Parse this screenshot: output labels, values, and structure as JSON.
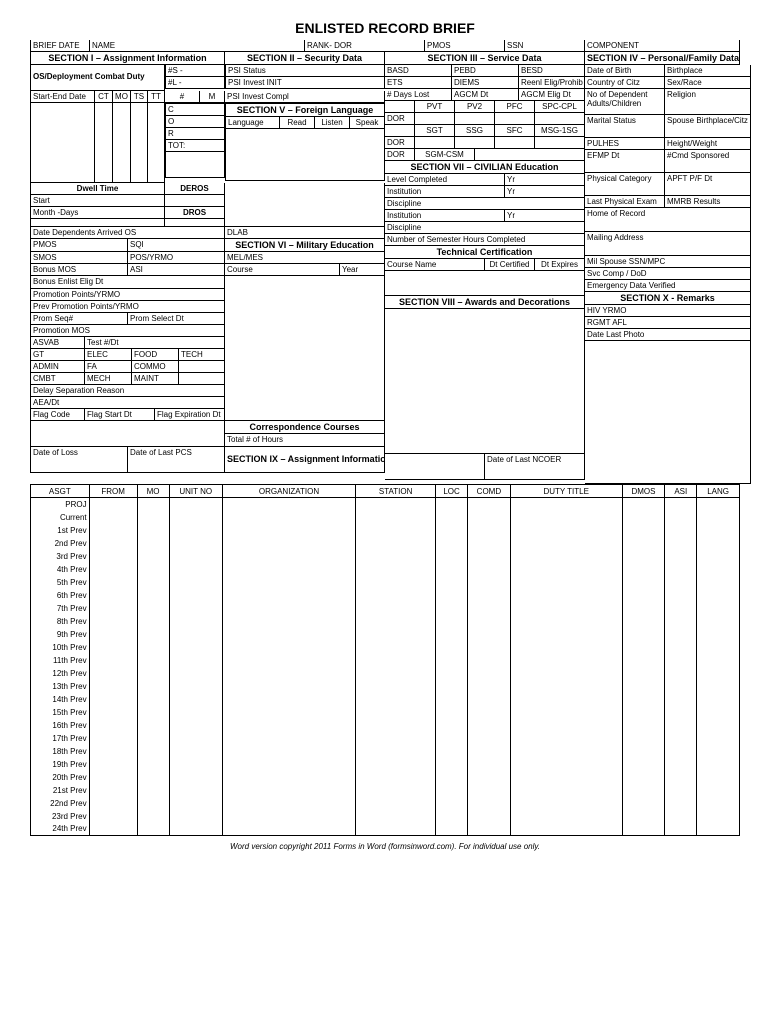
{
  "title": "ENLISTED RECORD BRIEF",
  "top": {
    "brief_date": "BRIEF DATE",
    "name": "NAME",
    "rank_dor": "RANK- DOR",
    "pmos": "PMOS",
    "ssn": "SSN",
    "component": "COMPONENT"
  },
  "sec": {
    "s1": "SECTION I – Assignment Information",
    "s2": "SECTION II – Security Data",
    "s3": "SECTION III – Service Data",
    "s4": "SECTION IV – Personal/Family Data",
    "s5": "SECTION V – Foreign Language",
    "s6": "SECTION VI – Military Education",
    "s7": "SECTION VII – CIVILIAN Education",
    "s8": "SECTION VIII – Awards and Decorations",
    "s9": "SECTION IX – Assignment Information",
    "s10": "SECTION X - Remarks",
    "tech_cert": "Technical Certification",
    "corr": "Correspondence Courses"
  },
  "s1": {
    "os_deploy": "OS/Deployment Combat Duty",
    "hash_s": "#S -",
    "hash_l": "#L -",
    "start_end": "Start-End Date",
    "ct": "CT",
    "mo": "MO",
    "ts": "TS",
    "tt": "TT",
    "hash": "#",
    "m": "M",
    "c": "C",
    "o": "O",
    "r": "R",
    "tot": "TOT:",
    "dwell": "Dwell Time",
    "deros": "DEROS",
    "start": "Start",
    "month_days": "Month -Days",
    "dros": "DROS",
    "date_dep": "Date Dependents Arrived OS",
    "dlab": "DLAB",
    "pmos": "PMOS",
    "sqi": "SQI",
    "smos": "SMOS",
    "pos_yrmo": "POS/YRMO",
    "bonus_mos": "Bonus MOS",
    "asi": "ASI",
    "bonus_enlist": "Bonus Enlist Elig Dt",
    "promo_pts": "Promotion Points/YRMO",
    "prev_promo": "Prev Promotion Points/YRMO",
    "prom_seq": "Prom Seq#",
    "prom_sel": "Prom Select Dt",
    "promo_mos": "Promotion MOS",
    "asvab": "ASVAB",
    "test_dt": "Test #/Dt",
    "gt": "GT",
    "elec": "ELEC",
    "food": "FOOD",
    "tech": "TECH",
    "admin": "ADMIN",
    "fa": "FA",
    "commo": "COMMO",
    "cmbt": "CMBT",
    "mech": "MECH",
    "maint": "MAINT",
    "delay": "Delay Separation Reason",
    "aea": "AEA/Dt",
    "flag_code": "Flag Code",
    "flag_start": "Flag Start Dt",
    "flag_exp": "Flag Expiration Dt",
    "date_loss": "Date of Loss",
    "date_pcs": "Date of Last PCS"
  },
  "s2": {
    "psi_status": "PSI Status",
    "psi_init": "PSI Invest INIT",
    "psi_compl": "PSI Invest Compl"
  },
  "s3": {
    "basd": "BASD",
    "pebd": "PEBD",
    "besd": "BESD",
    "ets": "ETS",
    "diems": "DIEMS",
    "reenl": "Reenl Elig/Prohib",
    "days_lost": "# Days Lost",
    "agcm_dt": "AGCM Dt",
    "agcm_elig": "AGCM Elig Dt",
    "pvt": "PVT",
    "pv2": "PV2",
    "pfc": "PFC",
    "spc": "SPC-CPL",
    "sgt": "SGT",
    "ssg": "SSG",
    "sfc": "SFC",
    "msg": "MSG-1SG",
    "sgm": "SGM-CSM",
    "dor": "DOR"
  },
  "s4": {
    "dob": "Date of Birth",
    "birthplace": "Birthplace",
    "coc": "Country of Citz",
    "sex_race": "Sex/Race",
    "dependents": "No of Dependent Adults/Children",
    "religion": "Religion",
    "marital": "Marital Status",
    "spouse_bp": "Spouse Birthplace/Citz",
    "pulhes": "PULHES",
    "hw": "Height/Weight",
    "efmp": "EFMP Dt",
    "cmd_spons": "#Cmd Sponsored",
    "phys_cat": "Physical Category",
    "apft": "APFT P/F Dt",
    "last_phys": "Last Physical Exam",
    "mmrb": "MMRB Results",
    "home_rec": "Home of Record",
    "mail_addr": "Mailing Address",
    "mil_spouse": "Mil Spouse SSN/MPC",
    "svc_comp": "Svc Comp / DoD",
    "edv": "Emergency Data Verified",
    "hiv": "HIV YRMO",
    "rgmt": "RGMT AFL",
    "date_photo": "Date Last Photo"
  },
  "s5": {
    "language": "Language",
    "read": "Read",
    "listen": "Listen",
    "speak": "Speak"
  },
  "s6": {
    "mel": "MEL/MES",
    "course": "Course",
    "year": "Year",
    "total_hours": "Total # of Hours"
  },
  "s7": {
    "level": "Level Completed",
    "yr": "Yr",
    "institution": "Institution",
    "discipline": "Discipline",
    "sem_hours": "Number of Semester Hours Completed",
    "course_name": "Course Name",
    "dt_cert": "Dt Certified",
    "dt_exp": "Dt Expires"
  },
  "s9": {
    "date_ncoer": "Date of Last NCOER",
    "headers": [
      "ASGT",
      "FROM",
      "MO",
      "UNIT NO",
      "ORGANIZATION",
      "STATION",
      "LOC",
      "COMD",
      "DUTY TITLE",
      "DMOS",
      "ASI",
      "LANG"
    ],
    "rows": [
      "PROJ",
      "Current",
      "1st Prev",
      "2nd Prev",
      "3rd Prev",
      "4th Prev",
      "5th Prev",
      "6th Prev",
      "7th Prev",
      "8th Prev",
      "9th Prev",
      "10th Prev",
      "11th Prev",
      "12th Prev",
      "13th Prev",
      "14th Prev",
      "15th Prev",
      "16th Prev",
      "17th Prev",
      "18th Prev",
      "19th Prev",
      "20th Prev",
      "21st Prev",
      "22nd Prev",
      "23rd Prev",
      "24th Prev"
    ]
  },
  "footer": "Word version copyright 2011 Forms in Word (formsinword.com).  For individual use only."
}
